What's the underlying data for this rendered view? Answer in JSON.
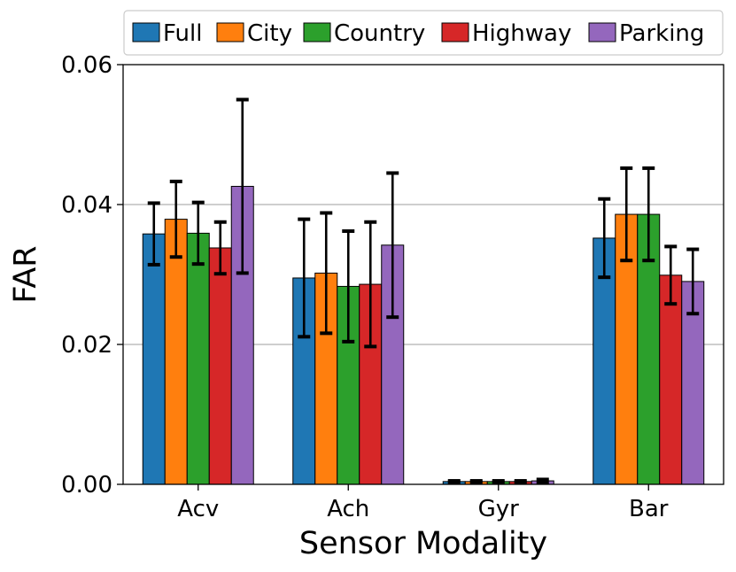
{
  "chart_data": {
    "type": "bar",
    "title": "",
    "xlabel": "Sensor Modality",
    "ylabel": "FAR",
    "categories": [
      "Acv",
      "Ach",
      "Gyr",
      "Bar"
    ],
    "ylim": [
      0,
      0.06
    ],
    "yticks": [
      0.0,
      0.02,
      0.04,
      0.06
    ],
    "ytick_labels": [
      "0.00",
      "0.02",
      "0.04",
      "0.06"
    ],
    "grid": "horizontal",
    "legend_position": "top",
    "series": [
      {
        "name": "Full",
        "color": "#1f77b4",
        "values": [
          0.0358,
          0.0295,
          0.0004,
          0.0352
        ],
        "errors": [
          0.0044,
          0.0084,
          0.0001,
          0.0056
        ]
      },
      {
        "name": "City",
        "color": "#ff7f0e",
        "values": [
          0.0379,
          0.0302,
          0.0004,
          0.0386
        ],
        "errors": [
          0.0054,
          0.0086,
          0.0001,
          0.0066
        ]
      },
      {
        "name": "Country",
        "color": "#2ca02c",
        "values": [
          0.0359,
          0.0283,
          0.0004,
          0.0386
        ],
        "errors": [
          0.0044,
          0.0079,
          0.0001,
          0.0066
        ]
      },
      {
        "name": "Highway",
        "color": "#d62728",
        "values": [
          0.0338,
          0.0286,
          0.0004,
          0.0299
        ],
        "errors": [
          0.0037,
          0.0089,
          0.0001,
          0.0041
        ]
      },
      {
        "name": "Parking",
        "color": "#9467bd",
        "values": [
          0.0426,
          0.0342,
          0.0005,
          0.029
        ],
        "errors": [
          0.0124,
          0.0103,
          0.0002,
          0.0046
        ]
      }
    ]
  }
}
